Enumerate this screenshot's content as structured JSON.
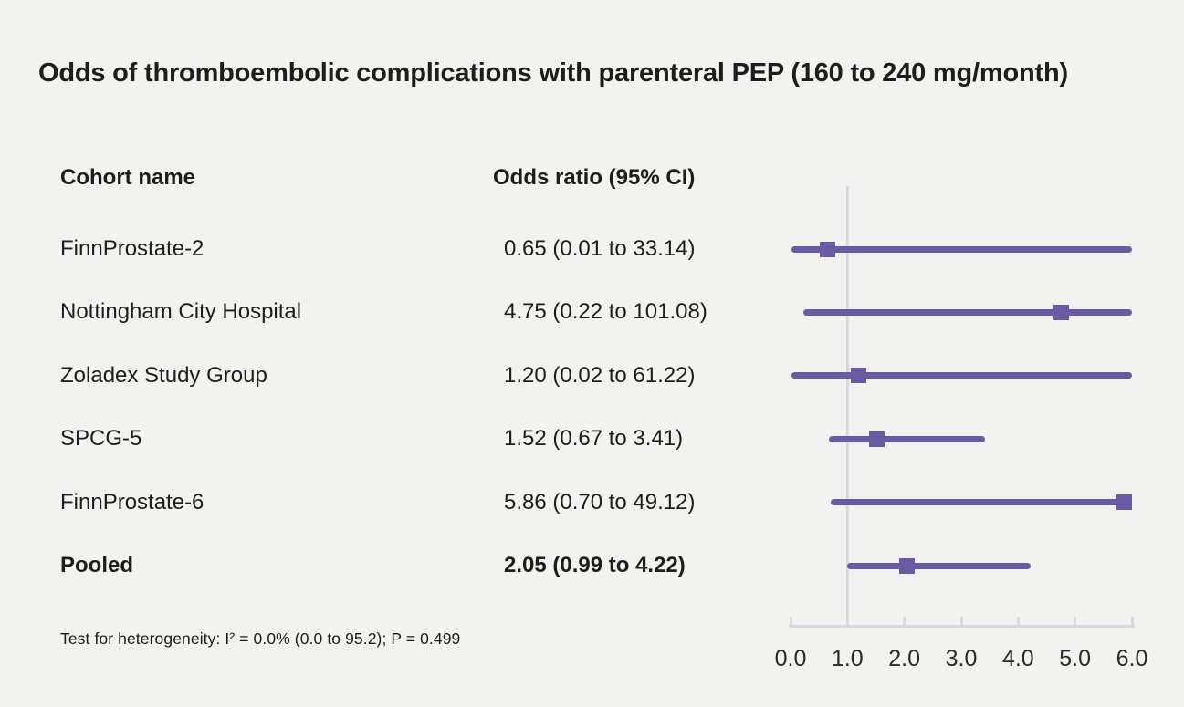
{
  "title": "Odds of thromboembolic complications with parenteral PEP (160 to 240 mg/month)",
  "table": {
    "columns": {
      "cohort": "Cohort name",
      "odds_ratio": "Odds ratio (95% CI)"
    }
  },
  "footnote": "Test for heterogeneity: I² = 0.0% (0.0 to 95.2); P = 0.499",
  "colors": {
    "background": "#f2f2f1",
    "marker": "#6a5aa4",
    "axis": "#d6d9e0",
    "text": "#1d1d1b"
  },
  "chart_data": {
    "type": "scatter",
    "variant": "forest-plot",
    "title": "Odds of thromboembolic complications with parenteral PEP (160 to 240 mg/month)",
    "xlabel": "",
    "ylabel": "",
    "xlim": [
      0.0,
      6.0
    ],
    "x_tick_labels": [
      "0.0",
      "1.0",
      "2.0",
      "3.0",
      "4.0",
      "5.0",
      "6.0"
    ],
    "x_tick_values": [
      0.0,
      1.0,
      2.0,
      3.0,
      4.0,
      5.0,
      6.0
    ],
    "reference_line_x": 1.0,
    "grid": false,
    "legend": "none",
    "rows": [
      {
        "cohort": "FinnProstate-2",
        "label": "0.65 (0.01 to 33.14)",
        "or": 0.65,
        "ci_low": 0.01,
        "ci_high": 33.14,
        "bold": false
      },
      {
        "cohort": "Nottingham City Hospital",
        "label": "4.75 (0.22 to 101.08)",
        "or": 4.75,
        "ci_low": 0.22,
        "ci_high": 101.08,
        "bold": false
      },
      {
        "cohort": "Zoladex Study Group",
        "label": "1.20 (0.02 to 61.22)",
        "or": 1.2,
        "ci_low": 0.02,
        "ci_high": 61.22,
        "bold": false
      },
      {
        "cohort": "SPCG-5",
        "label": "1.52 (0.67 to 3.41)",
        "or": 1.52,
        "ci_low": 0.67,
        "ci_high": 3.41,
        "bold": false
      },
      {
        "cohort": "FinnProstate-6",
        "label": "5.86 (0.70 to 49.12)",
        "or": 5.86,
        "ci_low": 0.7,
        "ci_high": 49.12,
        "bold": false
      },
      {
        "cohort": "Pooled",
        "label": "2.05 (0.99 to 4.22)",
        "or": 2.05,
        "ci_low": 0.99,
        "ci_high": 4.22,
        "bold": true
      }
    ]
  }
}
